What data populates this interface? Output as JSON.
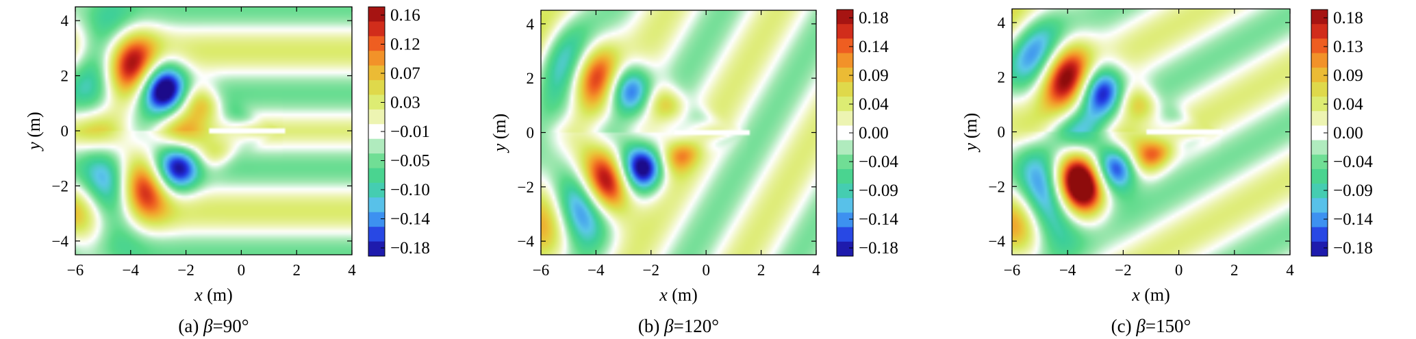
{
  "chart_data": [
    {
      "type": "heatmap",
      "caption_prefix": "(a) ",
      "caption_symbol": "β",
      "caption_value": "=90°",
      "xlabel_var": "x",
      "xlabel_unit": " (m)",
      "ylabel_var": "y",
      "ylabel_unit": " (m)",
      "xlim": [
        -6,
        4
      ],
      "ylim": [
        -4.5,
        4.5
      ],
      "x_ticks": [
        -6,
        -4,
        -2,
        0,
        2,
        4
      ],
      "y_ticks": [
        -4,
        -2,
        0,
        2,
        4
      ],
      "x_tick_labels": [
        "−6",
        "−4",
        "−2",
        "0",
        "2",
        "4"
      ],
      "y_tick_labels": [
        "−4",
        "−2",
        "0",
        "2",
        "4"
      ],
      "wave_angle_deg": 90,
      "colorbar_labels": [
        "0.16",
        "0.12",
        "0.07",
        "0.03",
        "−0.01",
        "−0.05",
        "−0.10",
        "−0.14",
        "−0.18"
      ],
      "colorbar_range": [
        -0.18,
        0.18
      ]
    },
    {
      "type": "heatmap",
      "caption_prefix": "(b) ",
      "caption_symbol": "β",
      "caption_value": "=120°",
      "xlabel_var": "x",
      "xlabel_unit": " (m)",
      "ylabel_var": "y",
      "ylabel_unit": " (m)",
      "xlim": [
        -6,
        4
      ],
      "ylim": [
        -4.5,
        4.5
      ],
      "x_ticks": [
        -6,
        -4,
        -2,
        0,
        2,
        4
      ],
      "y_ticks": [
        -4,
        -2,
        0,
        2,
        4
      ],
      "x_tick_labels": [
        "−6",
        "−4",
        "−2",
        "0",
        "2",
        "4"
      ],
      "y_tick_labels": [
        "−4",
        "−2",
        "0",
        "2",
        "4"
      ],
      "wave_angle_deg": 120,
      "colorbar_labels": [
        "0.18",
        "0.14",
        "0.09",
        "0.04",
        "0.00",
        "−0.04",
        "−0.09",
        "−0.14",
        "−0.18"
      ],
      "colorbar_range": [
        -0.18,
        0.18
      ]
    },
    {
      "type": "heatmap",
      "caption_prefix": "(c) ",
      "caption_symbol": "β",
      "caption_value": "=150°",
      "xlabel_var": "x",
      "xlabel_unit": " (m)",
      "ylabel_var": "y",
      "ylabel_unit": " (m)",
      "xlim": [
        -6,
        4
      ],
      "ylim": [
        -4.5,
        4.5
      ],
      "x_ticks": [
        -6,
        -4,
        -2,
        0,
        2,
        4
      ],
      "y_ticks": [
        -4,
        -2,
        0,
        2,
        4
      ],
      "x_tick_labels": [
        "−6",
        "−4",
        "−2",
        "0",
        "2",
        "4"
      ],
      "y_tick_labels": [
        "−4",
        "−2",
        "0",
        "2",
        "4"
      ],
      "wave_angle_deg": 150,
      "colorbar_labels": [
        "0.18",
        "0.13",
        "0.09",
        "0.04",
        "0.00",
        "−0.04",
        "−0.09",
        "−0.14",
        "−0.18"
      ],
      "colorbar_range": [
        -0.18,
        0.18
      ]
    }
  ],
  "colormap": [
    "#1c0b8a",
    "#2233e0",
    "#3b8ef0",
    "#5cc8e8",
    "#3ccf9a",
    "#57d987",
    "#9fe7b0",
    "#ffffff",
    "#e9f2a2",
    "#d7e85a",
    "#e8c93a",
    "#f39a2a",
    "#ee5a20",
    "#c81f1a",
    "#8e0c0c"
  ]
}
